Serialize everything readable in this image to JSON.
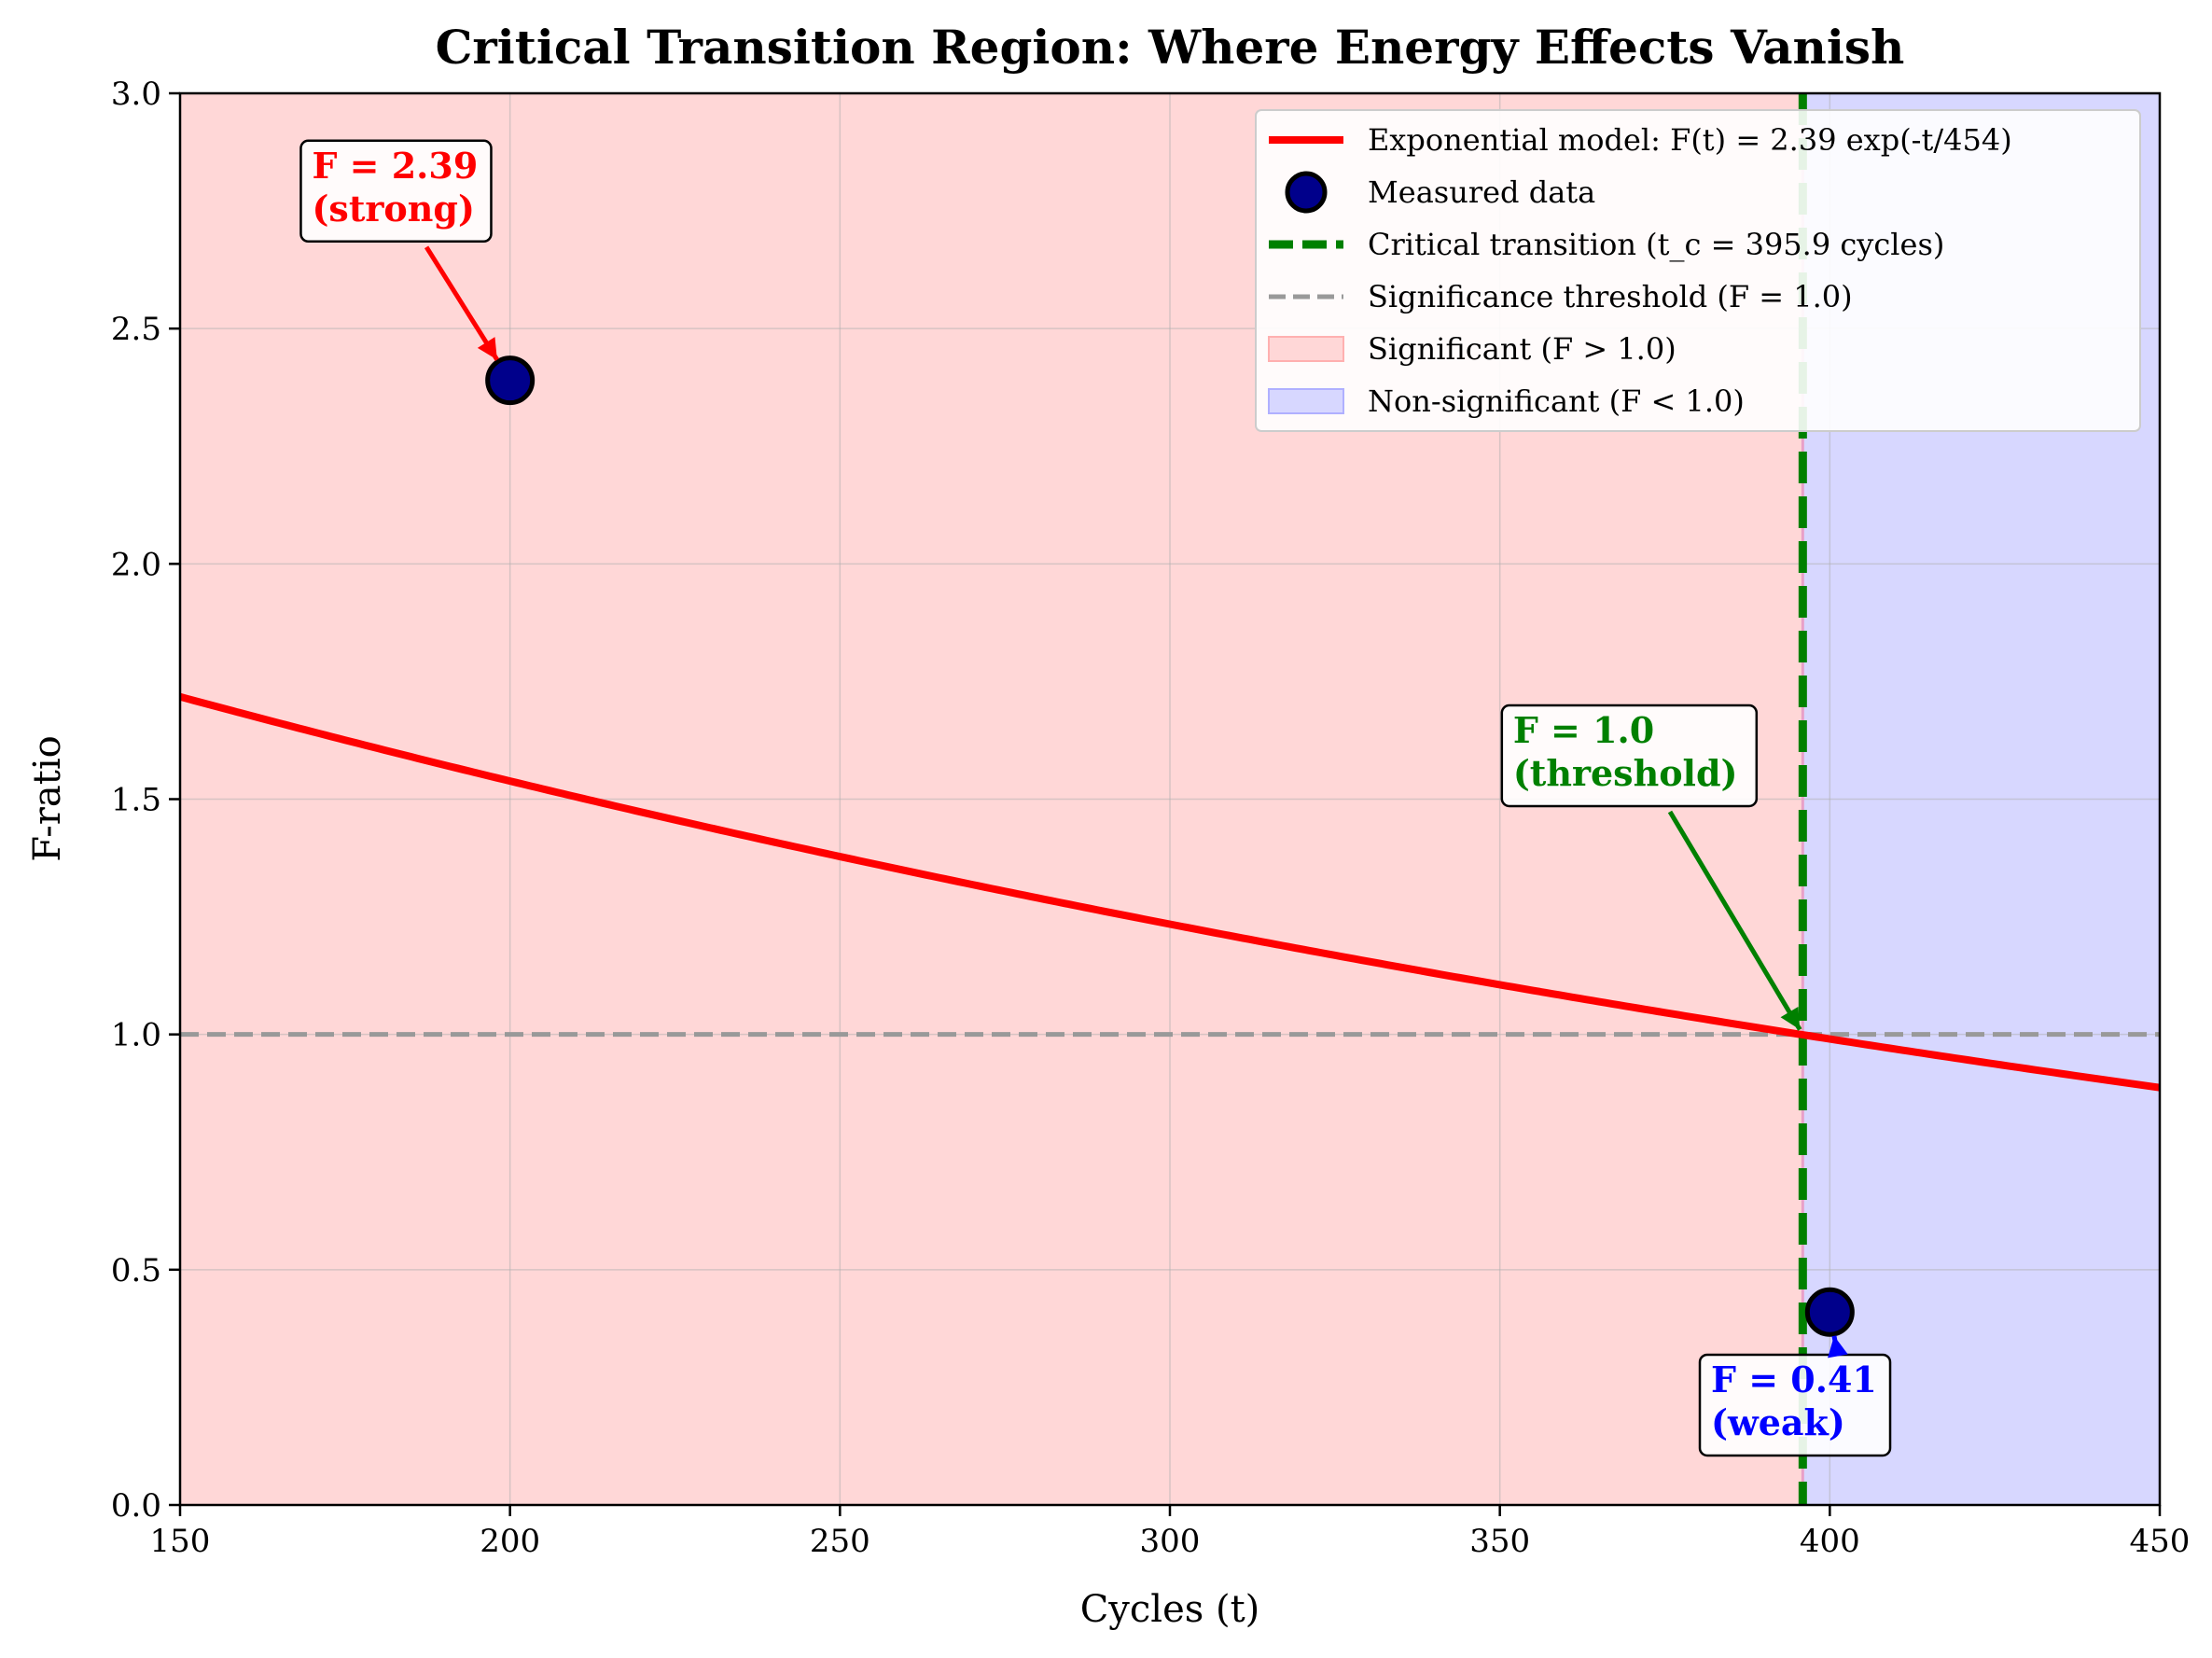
{
  "chart_data": {
    "type": "line",
    "title": "Critical Transition Region: Where Energy Effects Vanish",
    "xlabel": "Cycles (t)",
    "ylabel": "F-ratio",
    "xlim": [
      150,
      450
    ],
    "ylim": [
      0,
      3
    ],
    "xticks": [
      150,
      200,
      250,
      300,
      350,
      400,
      450
    ],
    "xtick_labels": [
      "150",
      "200",
      "250",
      "300",
      "350",
      "400",
      "450"
    ],
    "yticks": [
      0,
      0.5,
      1,
      1.5,
      2,
      2.5,
      3
    ],
    "ytick_labels": [
      "0.0",
      "0.5",
      "1.0",
      "1.5",
      "2.0",
      "2.5",
      "3.0"
    ],
    "grid": true,
    "legend_position": "top-right",
    "model": {
      "name": "Exponential model: F(t) = 2.39 exp(-t/454)",
      "a": 2.39,
      "tau": 454,
      "color": "#ff0000"
    },
    "measured": {
      "name": "Measured data",
      "x": [
        200,
        400
      ],
      "y": [
        2.39,
        0.41
      ],
      "fill": "#00008b",
      "edge": "#000000"
    },
    "critical": {
      "name": "Critical transition (t_c = 395.9 cycles)",
      "x": 395.9,
      "color": "#008000"
    },
    "threshold": {
      "name": "Significance threshold (F = 1.0)",
      "y": 1.0,
      "color": "#999999"
    },
    "regions": [
      {
        "name": "Significant (F > 1.0)",
        "x_from": 150,
        "x_to": 395.9,
        "color": "#ffd7d7"
      },
      {
        "name": "Non-significant (F < 1.0)",
        "x_from": 395.9,
        "x_to": 450,
        "color": "#d7d7ff"
      }
    ],
    "annotations": [
      {
        "lines": [
          "F = 2.39",
          "(strong)"
        ],
        "color": "#ff0000",
        "text_x": 170,
        "text_y": 2.82,
        "point_x": 200,
        "point_y": 2.39
      },
      {
        "lines": [
          "F = 1.0",
          "(threshold)"
        ],
        "color": "#008000",
        "text_x": 352,
        "text_y": 1.62,
        "point_x": 395.9,
        "point_y": 1.0
      },
      {
        "lines": [
          "F = 0.41",
          "(weak)"
        ],
        "color": "#0000ff",
        "text_x": 382,
        "text_y": 0.24,
        "point_x": 400,
        "point_y": 0.41
      }
    ]
  }
}
